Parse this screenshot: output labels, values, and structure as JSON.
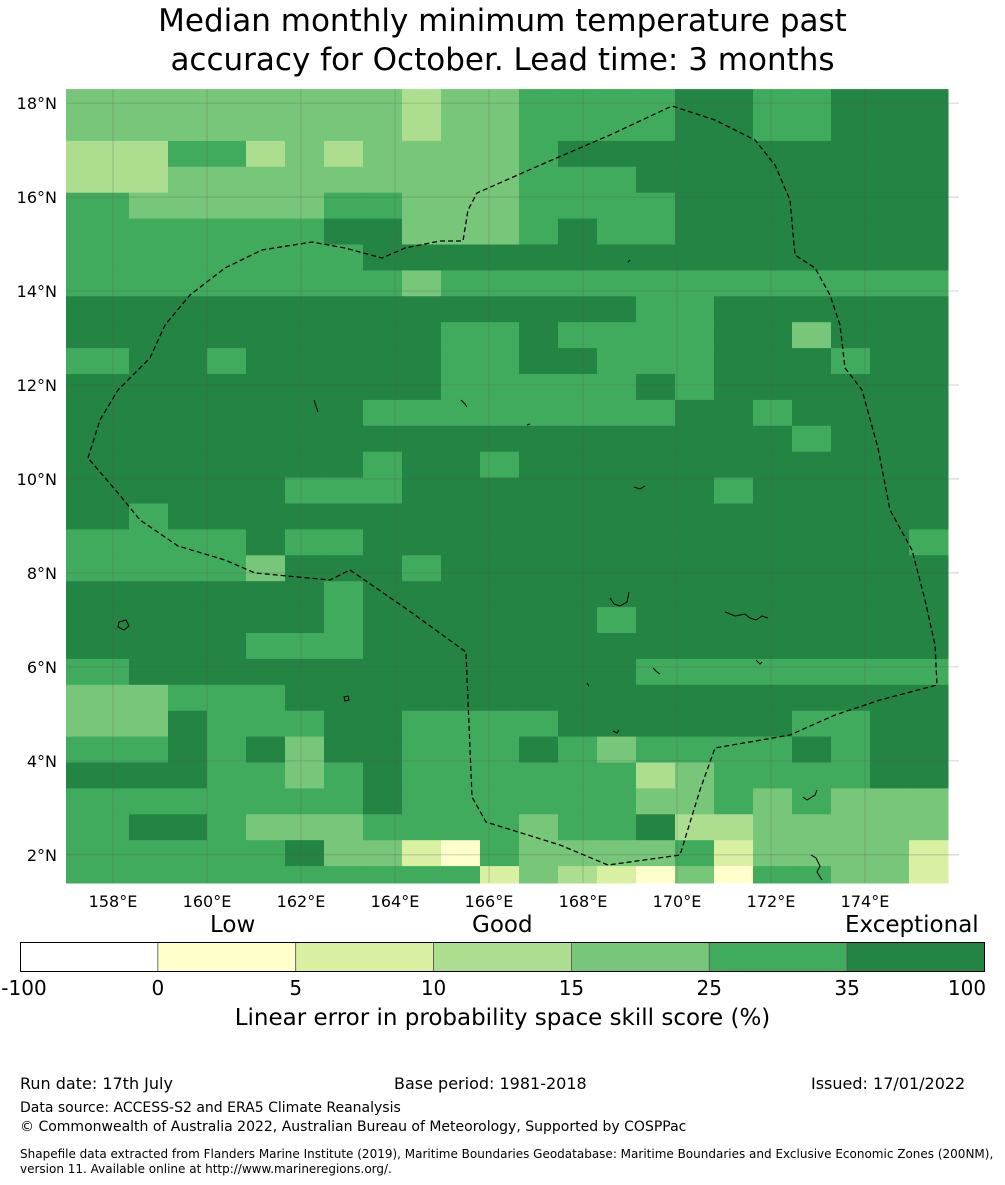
{
  "title_line1": "Median monthly minimum temperature past",
  "title_line2": "accuracy for October. Lead time: 3 months",
  "map": {
    "lat_ticks": [
      "2°N",
      "4°N",
      "6°N",
      "8°N",
      "10°N",
      "12°N",
      "14°N",
      "16°N",
      "18°N"
    ],
    "lon_ticks": [
      "158°E",
      "160°E",
      "162°E",
      "164°E",
      "166°E",
      "168°E",
      "170°E",
      "172°E",
      "174°E"
    ],
    "lon_range": [
      157,
      176
    ],
    "lat_range": [
      1.4,
      18.3
    ],
    "colors": {
      "c0": "#ffffcc",
      "c5": "#d9f0a3",
      "c10": "#addd8e",
      "c15": "#78c679",
      "c25": "#41ab5d",
      "c35": "#238443"
    }
  },
  "colorbar": {
    "category_low": "Low",
    "category_good": "Good",
    "category_exceptional": "Exceptional",
    "ticks": [
      "-100",
      "0",
      "5",
      "10",
      "15",
      "25",
      "35",
      "100"
    ],
    "colors": [
      "#ffffff",
      "#ffffcc",
      "#d9f0a3",
      "#addd8e",
      "#78c679",
      "#41ab5d",
      "#238443"
    ],
    "label": "Linear error in probability space skill score (%)"
  },
  "footer": {
    "run_date": "Run date: 17th July",
    "base_period": "Base period: 1981-2018",
    "issued": "Issued: 17/01/2022",
    "data_source": "Data source: ACCESS-S2 and ERA5 Climate Reanalysis",
    "copyright": "© Commonwealth of Australia 2022, Australian Bureau of Meteorology, Supported by COSPPac",
    "shapefile_line1": "Shapefile data extracted from Flanders Marine Institute (2019), Maritime Boundaries Geodatabase: Maritime Boundaries and Exclusive Economic Zones (200NM),",
    "shapefile_line2": "version 11. Available online at http://www.marineregions.org/."
  }
}
